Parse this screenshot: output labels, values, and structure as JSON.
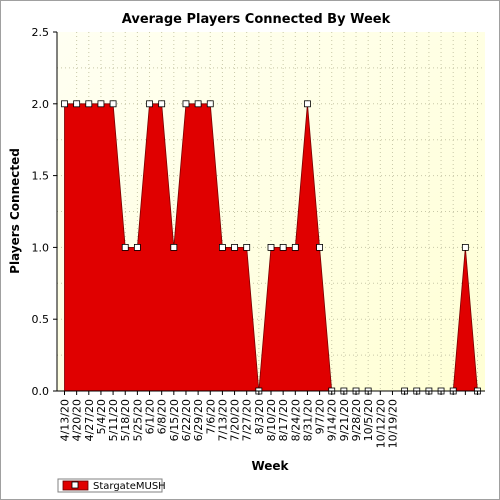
{
  "chart_data": {
    "type": "area",
    "title": "Average Players Connected By Week",
    "xlabel": "Week",
    "ylabel": "Players Connected",
    "ylim": [
      0,
      2.5
    ],
    "yticks": [
      "0.0",
      "0.5",
      "1.0",
      "1.5",
      "2.0",
      "2.5"
    ],
    "ytick_values": [
      0,
      0.5,
      1.0,
      1.5,
      2.0,
      2.5
    ],
    "xtick_labels": [
      "4/13/20",
      "4/20/20",
      "4/27/20",
      "5/4/20",
      "5/11/20",
      "5/18/20",
      "5/25/20",
      "6/1/20",
      "6/8/20",
      "6/15/20",
      "6/22/20",
      "6/29/20",
      "7/6/20",
      "7/13/20",
      "7/20/20",
      "7/27/20",
      "8/3/20",
      "8/10/20",
      "8/17/20",
      "8/24/20",
      "8/31/20",
      "9/7/20",
      "9/14/20",
      "9/21/20",
      "9/28/20",
      "10/5/20",
      "10/12/20",
      "10/19/20"
    ],
    "series": [
      {
        "name": "StargateMUSH",
        "color": "#e00000",
        "values": [
          2,
          2,
          2,
          2,
          2,
          1,
          1,
          2,
          2,
          1,
          2,
          2,
          2,
          1,
          1,
          1,
          0,
          1,
          1,
          1,
          2,
          1,
          0,
          0,
          0,
          0,
          null,
          null,
          0,
          0,
          0,
          0,
          0,
          1,
          0
        ]
      }
    ],
    "grid": true,
    "plot_background": [
      "#fffff2",
      "#ffffd5"
    ],
    "legend_position": "bottom-left"
  }
}
